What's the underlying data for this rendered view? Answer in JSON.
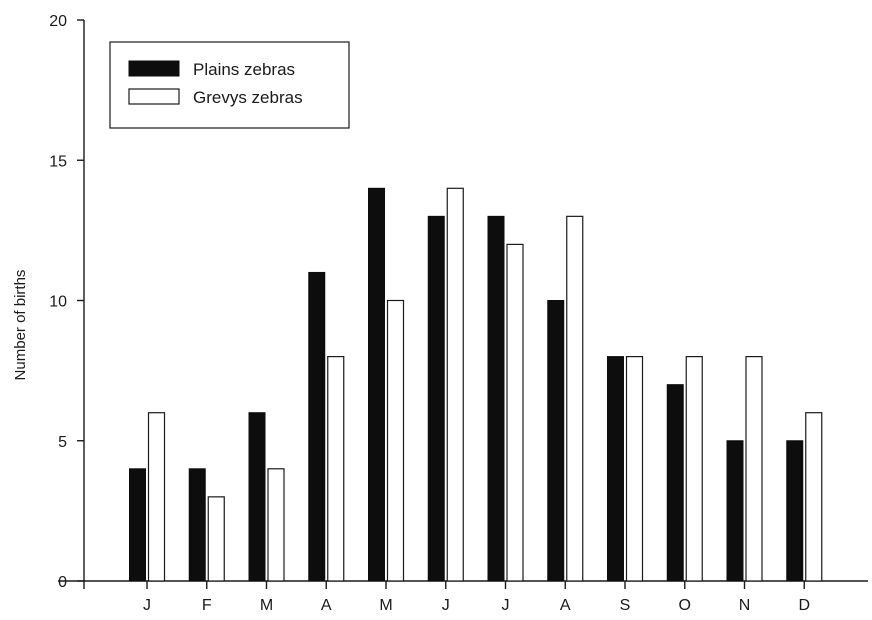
{
  "chart_data": {
    "type": "bar",
    "categories": [
      "J",
      "F",
      "M",
      "A",
      "M",
      "J",
      "J",
      "A",
      "S",
      "O",
      "N",
      "D"
    ],
    "series": [
      {
        "name": "Plains zebras",
        "values": [
          4,
          4,
          6,
          11,
          14,
          13,
          13,
          10,
          8,
          7,
          5,
          5
        ],
        "color": "#0d0d0d"
      },
      {
        "name": "Grevys zebras",
        "values": [
          6,
          3,
          4,
          8,
          10,
          14,
          12,
          13,
          8,
          8,
          8,
          6
        ],
        "color": "#ffffff"
      }
    ],
    "ylabel": "Number of births",
    "xlabel": "",
    "ylim": [
      0,
      20
    ],
    "yticks": [
      0,
      5,
      10,
      15,
      20
    ],
    "legend": {
      "position": "top-left"
    },
    "grid": false
  }
}
